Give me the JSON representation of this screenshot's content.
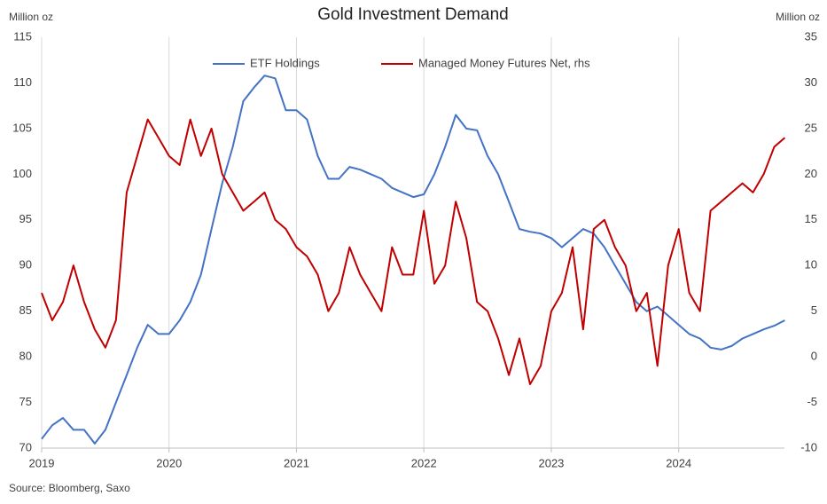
{
  "chart_data": {
    "type": "line",
    "title": "Gold Investment Demand",
    "y_label": "Million oz",
    "y2_label": "Million oz",
    "source": "Source: Bloomberg, Saxo",
    "x": [
      2019,
      2019.083,
      2019.167,
      2019.25,
      2019.333,
      2019.417,
      2019.5,
      2019.583,
      2019.667,
      2019.75,
      2019.833,
      2019.917,
      2020,
      2020.083,
      2020.167,
      2020.25,
      2020.333,
      2020.417,
      2020.5,
      2020.583,
      2020.667,
      2020.75,
      2020.833,
      2020.917,
      2021,
      2021.083,
      2021.167,
      2021.25,
      2021.333,
      2021.417,
      2021.5,
      2021.583,
      2021.667,
      2021.75,
      2021.833,
      2021.917,
      2022,
      2022.083,
      2022.167,
      2022.25,
      2022.333,
      2022.417,
      2022.5,
      2022.583,
      2022.667,
      2022.75,
      2022.833,
      2022.917,
      2023,
      2023.083,
      2023.167,
      2023.25,
      2023.333,
      2023.417,
      2023.5,
      2023.583,
      2023.667,
      2023.75,
      2023.833,
      2023.917,
      2024,
      2024.083,
      2024.167,
      2024.25,
      2024.333,
      2024.417,
      2024.5,
      2024.583,
      2024.667,
      2024.75,
      2024.833
    ],
    "series": [
      {
        "name": "ETF Holdings",
        "color": "#4472c4",
        "axis": "y",
        "values": [
          71,
          72.5,
          73.3,
          72,
          72,
          70.5,
          72,
          75,
          78,
          81,
          83.5,
          82.5,
          82.5,
          84,
          86,
          89,
          94,
          99,
          103,
          108,
          109.5,
          110.8,
          110.5,
          107,
          107,
          106,
          102,
          99.5,
          99.5,
          100.8,
          100.5,
          100,
          99.5,
          98.5,
          98,
          97.5,
          97.8,
          100,
          103,
          106.5,
          105,
          104.8,
          102,
          100,
          97,
          94,
          93.7,
          93.5,
          93,
          92,
          93,
          94,
          93.5,
          92,
          90,
          88,
          86,
          85,
          85.5,
          84.5,
          83.5,
          82.5,
          82,
          81,
          80.8,
          81.2,
          82,
          82.5,
          83,
          83.4,
          84
        ]
      },
      {
        "name": "Managed Money Futures Net, rhs",
        "color": "#c00000",
        "axis": "y2",
        "values": [
          7,
          4,
          6,
          10,
          6,
          3,
          1,
          4,
          18,
          22,
          26,
          24,
          22,
          21,
          26,
          22,
          25,
          20,
          18,
          16,
          17,
          18,
          15,
          14,
          12,
          11,
          9,
          5,
          7,
          12,
          9,
          7,
          5,
          12,
          9,
          9,
          16,
          8,
          10,
          17,
          13,
          6,
          5,
          2,
          -2,
          2,
          -3,
          -1,
          5,
          7,
          12,
          3,
          14,
          15,
          12,
          10,
          5,
          7,
          -1,
          10,
          14,
          7,
          5,
          16,
          17,
          18,
          19,
          18,
          20,
          23,
          24
        ]
      }
    ],
    "xlim": [
      2019,
      2024.83
    ],
    "xticks": [
      2019,
      2020,
      2021,
      2022,
      2023,
      2024
    ],
    "ylim": [
      70,
      115
    ],
    "yticks": [
      70,
      75,
      80,
      85,
      90,
      95,
      100,
      105,
      110,
      115
    ],
    "y2lim": [
      -10,
      35
    ],
    "y2ticks": [
      -10,
      -5,
      0,
      5,
      10,
      15,
      20,
      25,
      30,
      35
    ],
    "xgrid": true,
    "legend": "top"
  }
}
